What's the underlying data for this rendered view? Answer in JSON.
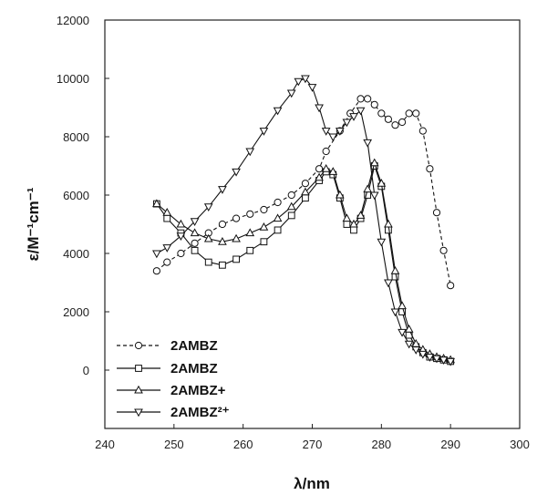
{
  "chart_data": {
    "type": "line",
    "title": "",
    "xlabel": "λ/nm",
    "ylabel": "ε/M⁻¹cm⁻¹",
    "xlim": [
      240,
      300
    ],
    "ylim": [
      -2000,
      12000
    ],
    "xticks": [
      "240",
      "250",
      "260",
      "270",
      "280",
      "290",
      "300"
    ],
    "yticks": [
      "0",
      "2000",
      "4000",
      "6000",
      "8000",
      "10000",
      "12000"
    ],
    "x_tick_values": [
      240,
      250,
      260,
      270,
      280,
      290,
      300
    ],
    "y_tick_values": [
      0,
      2000,
      4000,
      6000,
      8000,
      10000,
      12000
    ],
    "grid": false,
    "legend_position": "bottom-left",
    "series": [
      {
        "name": "2AMBZ",
        "marker": "circle",
        "line": "dashed",
        "x": [
          247.5,
          249,
          251,
          253,
          255,
          257,
          259,
          261,
          263,
          265,
          267,
          269,
          271,
          272,
          274,
          275.5,
          277,
          278,
          279,
          280,
          281,
          282,
          283,
          284,
          285,
          286,
          287,
          288,
          289,
          290
        ],
        "y": [
          3400,
          3700,
          4000,
          4350,
          4700,
          5000,
          5200,
          5350,
          5500,
          5750,
          6000,
          6400,
          6900,
          7500,
          8200,
          8800,
          9300,
          9300,
          9100,
          8800,
          8600,
          8400,
          8500,
          8800,
          8800,
          8200,
          6900,
          5400,
          4100,
          2900
        ]
      },
      {
        "name": "2AMBZ",
        "marker": "square",
        "line": "solid",
        "x": [
          247.5,
          249,
          251,
          253,
          255,
          257,
          259,
          261,
          263,
          265,
          267,
          269,
          271,
          272,
          273,
          274,
          275,
          276,
          277,
          278,
          279,
          280,
          281,
          282,
          283,
          284,
          285,
          286,
          287,
          288,
          289,
          290
        ],
        "y": [
          5700,
          5200,
          4700,
          4100,
          3700,
          3600,
          3800,
          4100,
          4400,
          4800,
          5300,
          5900,
          6500,
          6800,
          6700,
          5900,
          5000,
          4800,
          5200,
          6000,
          7000,
          6300,
          4800,
          3200,
          2000,
          1200,
          800,
          600,
          450,
          400,
          350,
          300
        ]
      },
      {
        "name": "2AMBZ+",
        "marker": "triangle",
        "line": "solid",
        "x": [
          247.5,
          249,
          251,
          253,
          255,
          257,
          259,
          261,
          263,
          265,
          267,
          269,
          271,
          272,
          273,
          274,
          275,
          276,
          277,
          278,
          279,
          280,
          281,
          282,
          283,
          284,
          285,
          286,
          287,
          288,
          289,
          290
        ],
        "y": [
          5700,
          5400,
          5000,
          4700,
          4500,
          4400,
          4500,
          4700,
          4900,
          5200,
          5600,
          6100,
          6600,
          6900,
          6800,
          6000,
          5200,
          5000,
          5300,
          6200,
          7100,
          6400,
          5000,
          3400,
          2200,
          1400,
          900,
          700,
          550,
          450,
          400,
          350
        ]
      },
      {
        "name": "2AMBZ²⁺",
        "marker": "downtriangle",
        "line": "solid",
        "x": [
          247.5,
          249,
          251,
          253,
          255,
          257,
          259,
          261,
          263,
          265,
          267,
          268,
          269,
          270,
          271,
          272,
          273,
          274,
          275,
          276,
          277,
          278,
          279,
          280,
          281,
          282,
          283,
          284,
          285,
          286,
          287,
          288,
          289,
          290
        ],
        "y": [
          4000,
          4200,
          4600,
          5100,
          5600,
          6200,
          6800,
          7500,
          8200,
          8900,
          9500,
          9900,
          10000,
          9700,
          9000,
          8200,
          8000,
          8200,
          8500,
          8700,
          8900,
          7800,
          6000,
          4400,
          3000,
          2000,
          1300,
          900,
          700,
          550,
          450,
          400,
          350,
          300
        ]
      }
    ]
  }
}
